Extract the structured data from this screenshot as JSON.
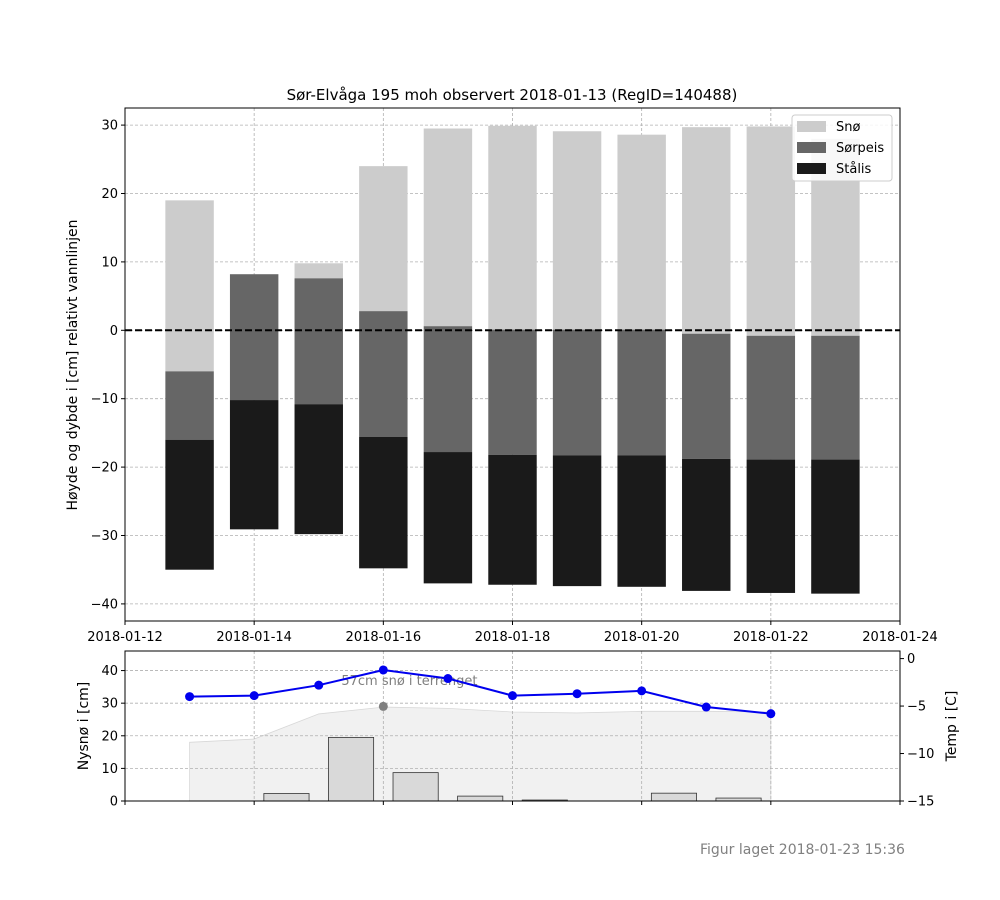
{
  "figure_note": "Figur laget 2018-01-23 15:36",
  "chart_data": [
    {
      "type": "bar",
      "stacked": true,
      "title": "Sør-Elvåga 195 moh observert 2018-01-13 (RegID=140488)",
      "xlabel": "",
      "ylabel": "Høyde og dybde i [cm] relativt vannlinjen",
      "xlim": [
        "2018-01-12",
        "2018-01-24"
      ],
      "ylim": [
        -42.5,
        32.5
      ],
      "x_ticks": [
        "2018-01-12",
        "2018-01-14",
        "2018-01-16",
        "2018-01-18",
        "2018-01-20",
        "2018-01-22",
        "2018-01-24"
      ],
      "y_ticks": [
        30,
        20,
        10,
        0,
        -10,
        -20,
        -30,
        -40
      ],
      "y_tick_labels": [
        "30",
        "20",
        "10",
        "0",
        "−10",
        "−20",
        "−30",
        "−40"
      ],
      "grid": true,
      "legend_position": "top-right",
      "waterline": 0,
      "categories": [
        "2018-01-13",
        "2018-01-14",
        "2018-01-15",
        "2018-01-16",
        "2018-01-17",
        "2018-01-18",
        "2018-01-19",
        "2018-01-20",
        "2018-01-21",
        "2018-01-22",
        "2018-01-23"
      ],
      "series": [
        {
          "name": "Snø",
          "color": "#cccccc",
          "bottom": [
            -6,
            8.2,
            7.6,
            2.8,
            0.6,
            0.1,
            0.1,
            0.1,
            -0.5,
            -0.8,
            -0.8
          ],
          "top": [
            19,
            8.2,
            9.8,
            24,
            29.5,
            29.9,
            29.1,
            28.6,
            29.7,
            29.8,
            28.0
          ]
        },
        {
          "name": "Sørpeis",
          "color": "#666666",
          "bottom": [
            -16,
            -10.2,
            -10.8,
            -15.6,
            -17.8,
            -18.2,
            -18.3,
            -18.3,
            -18.8,
            -18.9,
            -18.9
          ],
          "top": [
            -6,
            8.2,
            7.6,
            2.8,
            0.6,
            0.1,
            0.1,
            0.1,
            -0.5,
            -0.8,
            -0.8
          ]
        },
        {
          "name": "Stålis",
          "color": "#1a1a1a",
          "bottom": [
            -35,
            -29.1,
            -29.8,
            -34.8,
            -37,
            -37.2,
            -37.4,
            -37.5,
            -38.1,
            -38.4,
            -38.5
          ],
          "top": [
            -16,
            -10.2,
            -10.8,
            -15.6,
            -17.8,
            -18.2,
            -18.3,
            -18.3,
            -18.8,
            -18.9,
            -18.9
          ]
        }
      ]
    },
    {
      "type": "bar",
      "xlim": [
        "2018-01-12",
        "2018-01-24"
      ],
      "ylabel": "Nysnø i [cm]",
      "ylim": [
        0,
        46
      ],
      "y_ticks": [
        0,
        10,
        20,
        30,
        40
      ],
      "y_tick_labels": [
        "0",
        "10",
        "20",
        "30",
        "40"
      ],
      "grid": true,
      "categories": [
        "2018-01-13",
        "2018-01-14",
        "2018-01-15",
        "2018-01-16",
        "2018-01-17",
        "2018-01-18",
        "2018-01-19",
        "2018-01-20",
        "2018-01-21",
        "2018-01-22",
        "2018-01-23"
      ],
      "new_snow_cm": [
        0,
        2.3,
        19.5,
        8.7,
        1.5,
        0.3,
        0,
        2.4,
        0.9,
        0,
        0
      ],
      "snow_depth_x": [
        "2018-01-13",
        "2018-01-14",
        "2018-01-15",
        "2018-01-16",
        "2018-01-17",
        "2018-01-18",
        "2018-01-19",
        "2018-01-20",
        "2018-01-21",
        "2018-01-22"
      ],
      "snow_depth_cm": [
        18,
        19,
        26.7,
        28.8,
        28.4,
        27.3,
        27.0,
        27.5,
        27.5,
        27.3
      ],
      "observation": {
        "x": "2018-01-16",
        "y": 29,
        "label": "57cm snø i terrenget"
      },
      "temperature": {
        "ylabel": "Temp i [C]",
        "ylim": [
          -15,
          0.8
        ],
        "y_ticks": [
          0,
          -5,
          -10,
          -15
        ],
        "y_tick_labels": [
          "0",
          "−5",
          "−10",
          "−15"
        ],
        "color": "#0000ee",
        "x": [
          "2018-01-13",
          "2018-01-14",
          "2018-01-15",
          "2018-01-16",
          "2018-01-17",
          "2018-01-18",
          "2018-01-19",
          "2018-01-20",
          "2018-01-21",
          "2018-01-22"
        ],
        "values": [
          -4.0,
          -3.9,
          -2.8,
          -1.2,
          -2.1,
          -3.9,
          -3.7,
          -3.4,
          -5.1,
          -5.8
        ]
      }
    }
  ]
}
